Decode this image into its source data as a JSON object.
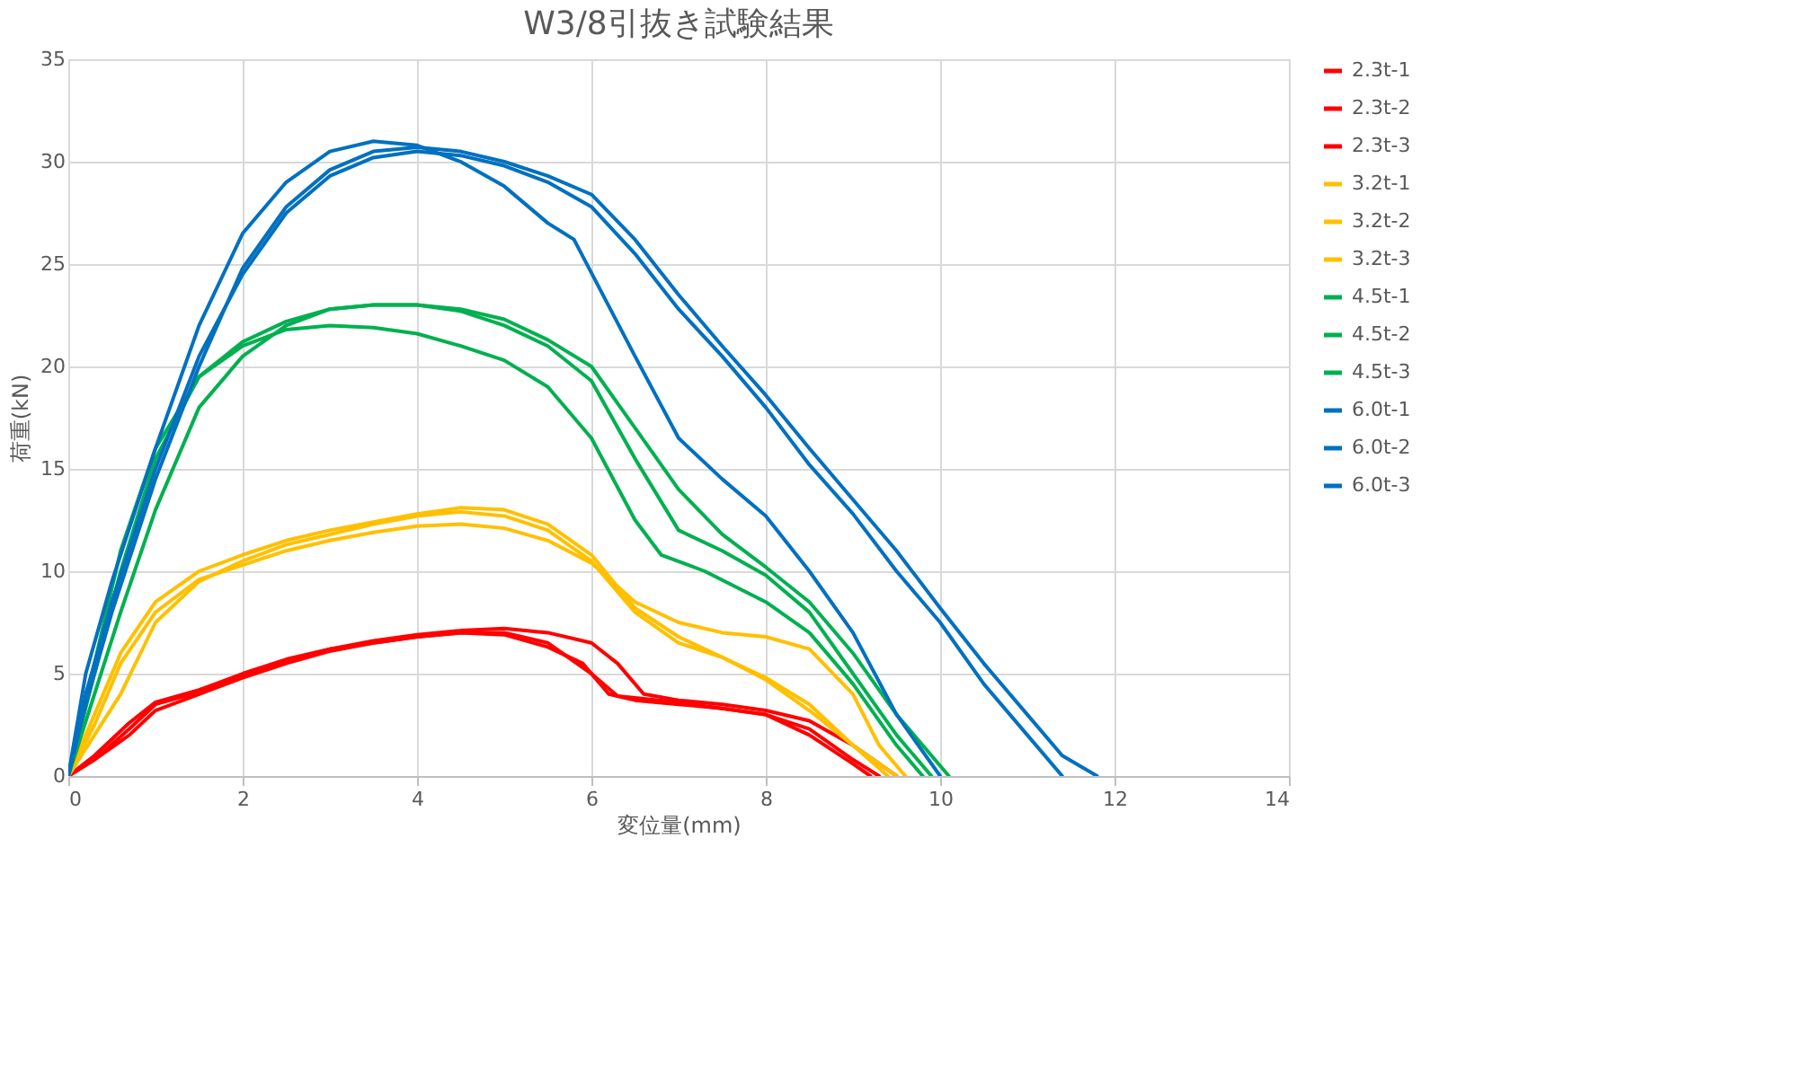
{
  "chart_data": {
    "type": "line",
    "title": "W3/8引抜き試験結果",
    "xlabel": "変位量(mm)",
    "ylabel": "荷重(kN)",
    "xlim": [
      0,
      14
    ],
    "xticks": [
      0,
      2,
      4,
      6,
      8,
      10,
      12,
      14
    ],
    "ylim": [
      0,
      35
    ],
    "yticks": [
      0,
      5,
      10,
      15,
      20,
      25,
      30,
      35
    ],
    "grid": true,
    "legend": "right",
    "marker": "none",
    "line_style": "solid",
    "series": [
      {
        "name": "2.3t-1",
        "color": "#ff0000",
        "x": [
          0,
          0.3,
          0.7,
          1,
          1.5,
          2,
          2.5,
          3,
          3.5,
          4,
          4.5,
          5,
          5.5,
          5.9,
          6.2,
          6.5,
          7,
          7.5,
          8,
          8.5,
          9,
          9.3
        ],
        "values": [
          0,
          0.8,
          2,
          3.2,
          4,
          4.8,
          5.5,
          6.1,
          6.5,
          6.8,
          7,
          6.9,
          6.3,
          5.5,
          4,
          3.7,
          3.5,
          3.3,
          3,
          2.3,
          0.8,
          0
        ]
      },
      {
        "name": "2.3t-2",
        "color": "#ff0000",
        "x": [
          0,
          0.3,
          0.7,
          1,
          1.5,
          2,
          2.5,
          3,
          3.5,
          4,
          4.5,
          5,
          5.5,
          6,
          6.3,
          7,
          7.5,
          8,
          8.5,
          9,
          9.2
        ],
        "values": [
          0,
          0.8,
          2.3,
          3.5,
          4.1,
          4.9,
          5.6,
          6.2,
          6.5,
          6.8,
          7,
          7,
          6.5,
          5,
          3.9,
          3.6,
          3.3,
          3,
          2,
          0.6,
          0
        ]
      },
      {
        "name": "2.3t-3",
        "color": "#ff0000",
        "x": [
          0,
          0.3,
          0.7,
          1,
          1.5,
          2,
          2.5,
          3,
          3.5,
          4,
          4.5,
          5,
          5.5,
          6,
          6.3,
          6.6,
          7,
          7.5,
          8,
          8.5,
          9,
          9.5
        ],
        "values": [
          0,
          1,
          2.6,
          3.6,
          4.2,
          5,
          5.7,
          6.2,
          6.6,
          6.9,
          7.1,
          7.2,
          7,
          6.5,
          5.5,
          4,
          3.7,
          3.5,
          3.2,
          2.7,
          1.5,
          0
        ]
      },
      {
        "name": "3.2t-1",
        "color": "#ffc000",
        "x": [
          0,
          0.3,
          0.6,
          1,
          1.5,
          2,
          2.5,
          3,
          3.5,
          4,
          4.5,
          5,
          5.5,
          6,
          6.5,
          7,
          7.5,
          8,
          8.5,
          9,
          9.3,
          9.6
        ],
        "values": [
          0,
          2.5,
          5.5,
          8,
          9.6,
          10.3,
          11,
          11.5,
          11.9,
          12.2,
          12.3,
          12.1,
          11.5,
          10.4,
          8.5,
          7.5,
          7,
          6.8,
          6.2,
          4,
          1.5,
          0
        ]
      },
      {
        "name": "3.2t-2",
        "color": "#ffc000",
        "x": [
          0,
          0.3,
          0.6,
          1,
          1.5,
          2,
          2.5,
          3,
          3.5,
          4,
          4.5,
          5,
          5.5,
          6,
          6.5,
          7,
          7.5,
          8,
          8.5,
          9,
          9.4
        ],
        "values": [
          0,
          2,
          4,
          7.5,
          9.5,
          10.5,
          11.3,
          11.8,
          12.3,
          12.7,
          12.9,
          12.7,
          12,
          10.5,
          8,
          6.5,
          5.8,
          4.8,
          3.5,
          1.5,
          0
        ]
      },
      {
        "name": "3.2t-3",
        "color": "#ffc000",
        "x": [
          0,
          0.3,
          0.6,
          1,
          1.5,
          2,
          2.5,
          3,
          3.5,
          4,
          4.5,
          5,
          5.5,
          6,
          6.5,
          7,
          7.5,
          8,
          8.5,
          9,
          9.5
        ],
        "values": [
          0,
          3,
          6,
          8.5,
          10,
          10.8,
          11.5,
          12,
          12.4,
          12.8,
          13.1,
          13,
          12.3,
          10.8,
          8.2,
          6.8,
          5.8,
          4.7,
          3.2,
          1.5,
          0
        ]
      },
      {
        "name": "4.5t-1",
        "color": "#00b050",
        "x": [
          0,
          0.3,
          0.6,
          1,
          1.5,
          2,
          2.5,
          3,
          3.5,
          4,
          4.5,
          5,
          5.5,
          6,
          6.5,
          6.8,
          7.3,
          8,
          8.5,
          9,
          9.5,
          9.8
        ],
        "values": [
          0,
          5,
          10,
          15.5,
          19.5,
          21,
          21.8,
          22,
          21.9,
          21.6,
          21,
          20.3,
          19,
          16.5,
          12.5,
          10.8,
          10,
          8.5,
          7,
          4.5,
          1.5,
          0
        ]
      },
      {
        "name": "4.5t-2",
        "color": "#00b050",
        "x": [
          0,
          0.3,
          0.6,
          1,
          1.5,
          2,
          2.5,
          3,
          3.5,
          4,
          4.5,
          5,
          5.5,
          6,
          6.5,
          7,
          7.5,
          8,
          8.5,
          9,
          9.5,
          9.9
        ],
        "values": [
          0,
          4,
          8,
          13,
          18,
          20.5,
          22,
          22.8,
          23,
          23,
          22.7,
          22,
          21,
          19.3,
          15.5,
          12,
          11,
          9.8,
          8,
          5,
          2,
          0
        ]
      },
      {
        "name": "4.5t-3",
        "color": "#00b050",
        "x": [
          0,
          0.3,
          0.6,
          1,
          1.5,
          2,
          2.5,
          3,
          3.5,
          4,
          4.5,
          5,
          5.5,
          6,
          6.5,
          7,
          7.5,
          8,
          8.5,
          9,
          9.5,
          10.1
        ],
        "values": [
          0,
          5.5,
          11,
          16,
          19.5,
          21.2,
          22.2,
          22.8,
          23,
          23,
          22.8,
          22.3,
          21.3,
          20,
          17,
          14,
          11.8,
          10.2,
          8.5,
          6,
          3,
          0
        ]
      },
      {
        "name": "6.0t-1",
        "color": "#0070c0",
        "x": [
          0,
          0.2,
          0.5,
          1,
          1.5,
          2,
          2.5,
          3,
          3.5,
          4,
          4.5,
          5,
          5.5,
          5.8,
          6.5,
          7,
          7.5,
          8,
          8.5,
          9,
          9.5,
          10
        ],
        "values": [
          0,
          5,
          9.5,
          16,
          22,
          26.5,
          29,
          30.5,
          31,
          30.8,
          30,
          28.8,
          27,
          26.2,
          20.5,
          16.5,
          14.5,
          12.7,
          10,
          7,
          3,
          0
        ]
      },
      {
        "name": "6.0t-2",
        "color": "#0070c0",
        "x": [
          0,
          0.2,
          0.5,
          1,
          1.5,
          2,
          2.5,
          3,
          3.5,
          4,
          4.5,
          5,
          5.5,
          6,
          6.5,
          7,
          7.5,
          8,
          8.5,
          9,
          9.5,
          10,
          10.5,
          11,
          11.4
        ],
        "values": [
          0,
          4,
          8.5,
          15,
          20.5,
          24.5,
          27.5,
          29.3,
          30.2,
          30.5,
          30.3,
          29.8,
          29,
          27.8,
          25.5,
          22.8,
          20.5,
          18,
          15.2,
          12.8,
          10,
          7.5,
          4.5,
          2,
          0
        ]
      },
      {
        "name": "6.0t-3",
        "color": "#0070c0",
        "x": [
          0,
          0.2,
          0.5,
          1,
          1.5,
          2,
          2.5,
          3,
          3.5,
          4,
          4.5,
          5,
          5.5,
          6,
          6.5,
          7,
          7.5,
          8,
          8.5,
          9,
          9.5,
          10,
          10.5,
          11,
          11.4,
          11.8
        ],
        "values": [
          0,
          3.5,
          8,
          14.5,
          20,
          24.8,
          27.8,
          29.6,
          30.5,
          30.7,
          30.5,
          30,
          29.3,
          28.4,
          26.2,
          23.5,
          21,
          18.6,
          16,
          13.5,
          11,
          8.2,
          5.5,
          3,
          1,
          0
        ]
      }
    ]
  }
}
